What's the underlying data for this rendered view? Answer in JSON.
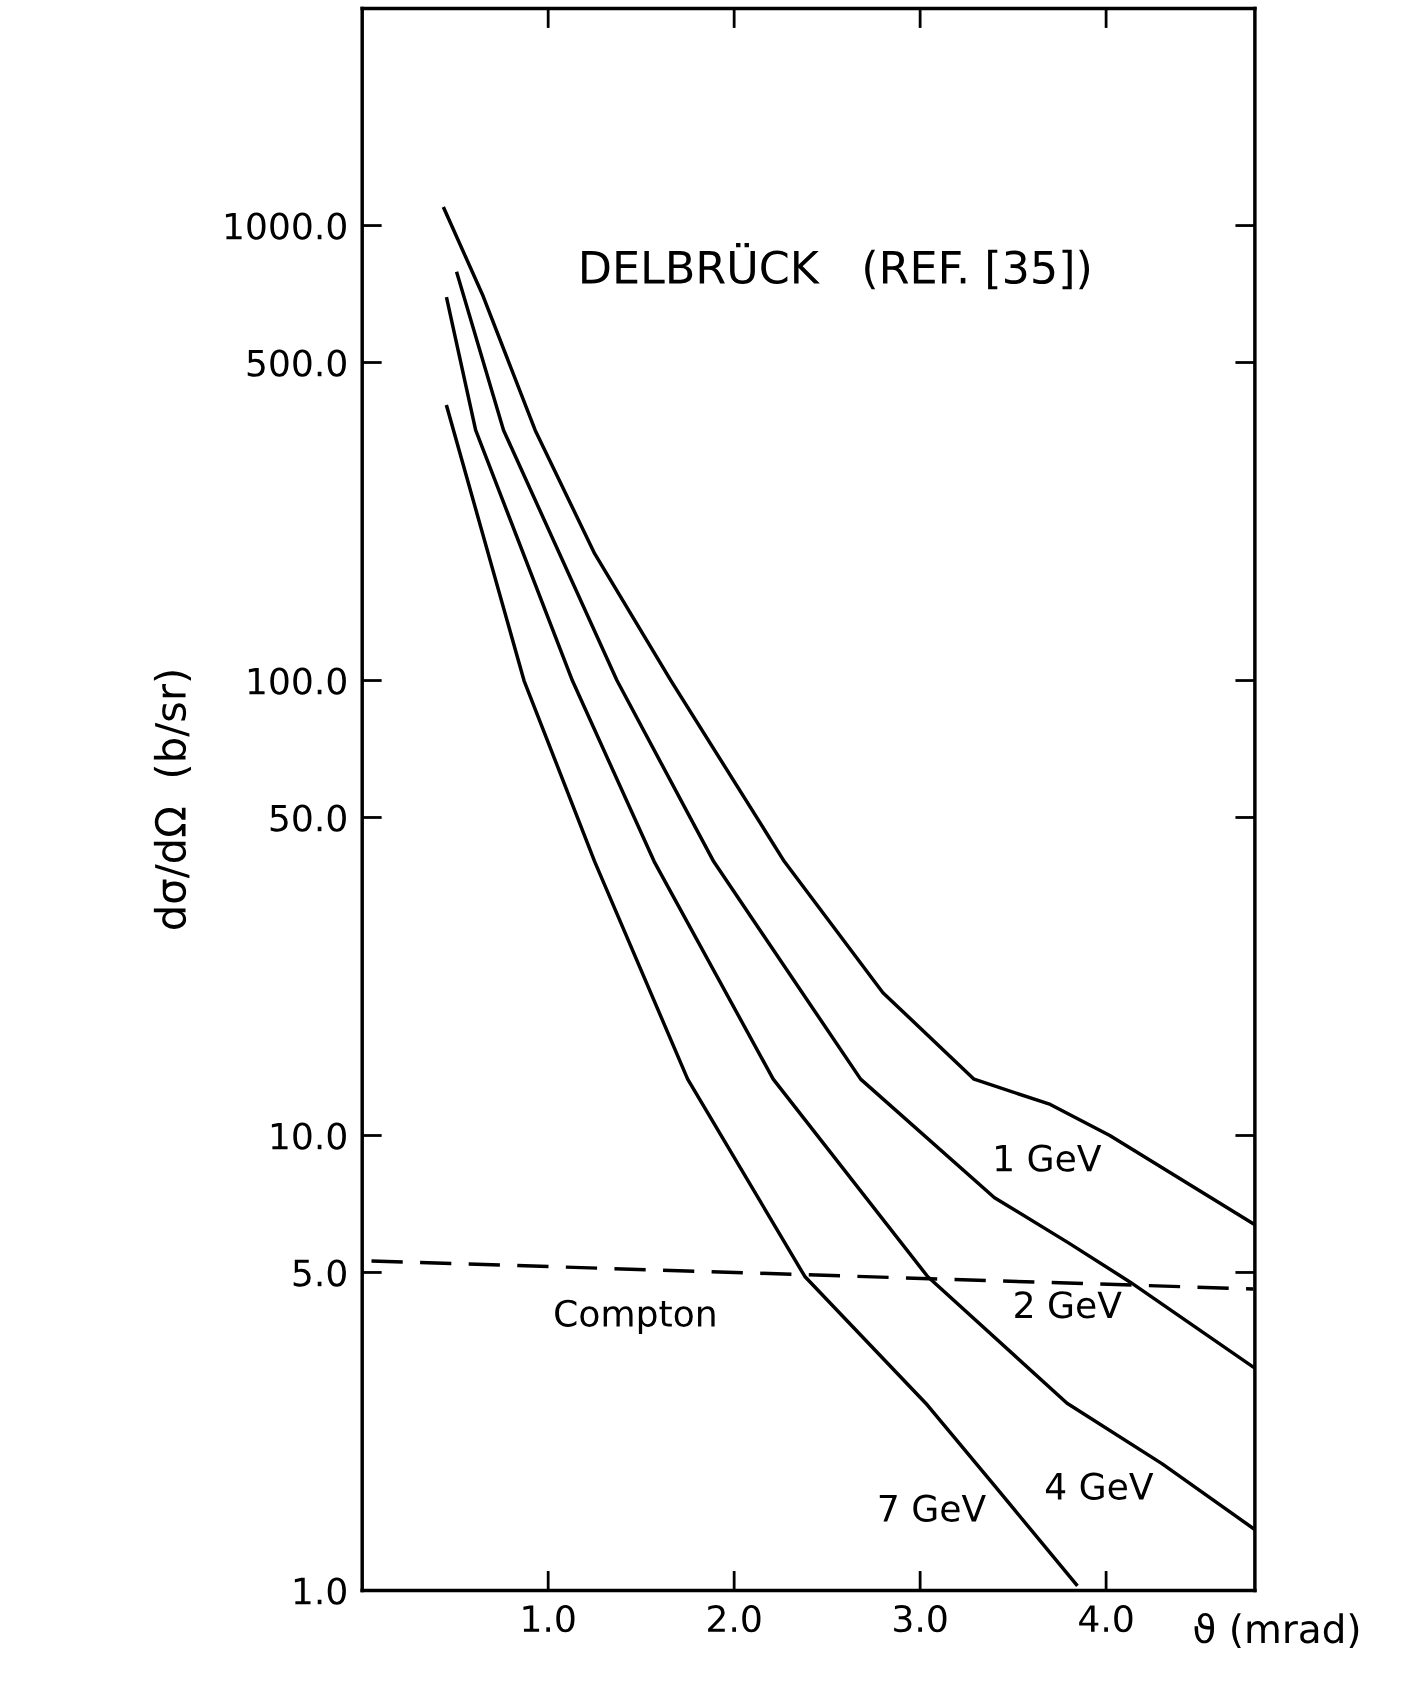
{
  "chart_data": {
    "type": "line",
    "title": "DELBRÜCK   (REF. [35])",
    "xlabel": "ϑ (mrad)",
    "ylabel": "dσ/dΩ  (b/sr)",
    "log": "y",
    "grid": false,
    "legend": false,
    "marker": "none",
    "xlim": [
      0,
      4.8
    ],
    "ylim": [
      1,
      3000
    ],
    "xticks": [
      {
        "value": 1,
        "label": "1.0"
      },
      {
        "value": 2,
        "label": "2.0"
      },
      {
        "value": 3,
        "label": "3.0"
      },
      {
        "value": 4,
        "label": "4.0"
      }
    ],
    "yticks": [
      {
        "value": 1,
        "label": "1.0"
      },
      {
        "value": 5,
        "label": "5.0"
      },
      {
        "value": 10,
        "label": "10.0"
      },
      {
        "value": 50,
        "label": "50.0"
      },
      {
        "value": 100,
        "label": "100.0"
      },
      {
        "value": 500,
        "label": "500.0"
      },
      {
        "value": 1000,
        "label": "1000.0"
      }
    ],
    "series": [
      {
        "name": "1 GeV",
        "color": "#000000",
        "line_style": "solid",
        "x": [
          0.44,
          0.65,
          0.93,
          1.25,
          1.66,
          2.27,
          2.8,
          3.29,
          3.7,
          4.02,
          4.79
        ],
        "values": [
          1090,
          700,
          355,
          190,
          100,
          40,
          20.6,
          13.3,
          11.7,
          10,
          6.4
        ]
      },
      {
        "name": "2 GeV",
        "color": "#000000",
        "line_style": "solid",
        "x": [
          0.51,
          0.76,
          1.37,
          1.89,
          2.68,
          3.4,
          3.8,
          4.13,
          4.79
        ],
        "values": [
          785,
          355,
          100,
          40,
          13.3,
          7.3,
          5.8,
          4.76,
          3.1
        ]
      },
      {
        "name": "4 GeV",
        "color": "#000000",
        "line_style": "solid",
        "x": [
          0.455,
          0.61,
          1.13,
          1.57,
          2.21,
          3.04,
          3.79,
          4.3,
          4.79
        ],
        "values": [
          690,
          355,
          100,
          40,
          13.3,
          4.9,
          2.58,
          1.9,
          1.37
        ]
      },
      {
        "name": "7 GeV",
        "color": "#000000",
        "line_style": "solid",
        "x": [
          0.455,
          0.87,
          1.25,
          1.75,
          2.38,
          3.03,
          3.4,
          3.84
        ],
        "values": [
          400,
          100,
          40,
          13.3,
          4.9,
          2.58,
          1.7,
          1.03
        ]
      },
      {
        "name": "Compton",
        "color": "#000000",
        "line_style": "dashed",
        "x": [
          0.05,
          4.79
        ],
        "values": [
          5.3,
          4.6
        ]
      }
    ]
  }
}
